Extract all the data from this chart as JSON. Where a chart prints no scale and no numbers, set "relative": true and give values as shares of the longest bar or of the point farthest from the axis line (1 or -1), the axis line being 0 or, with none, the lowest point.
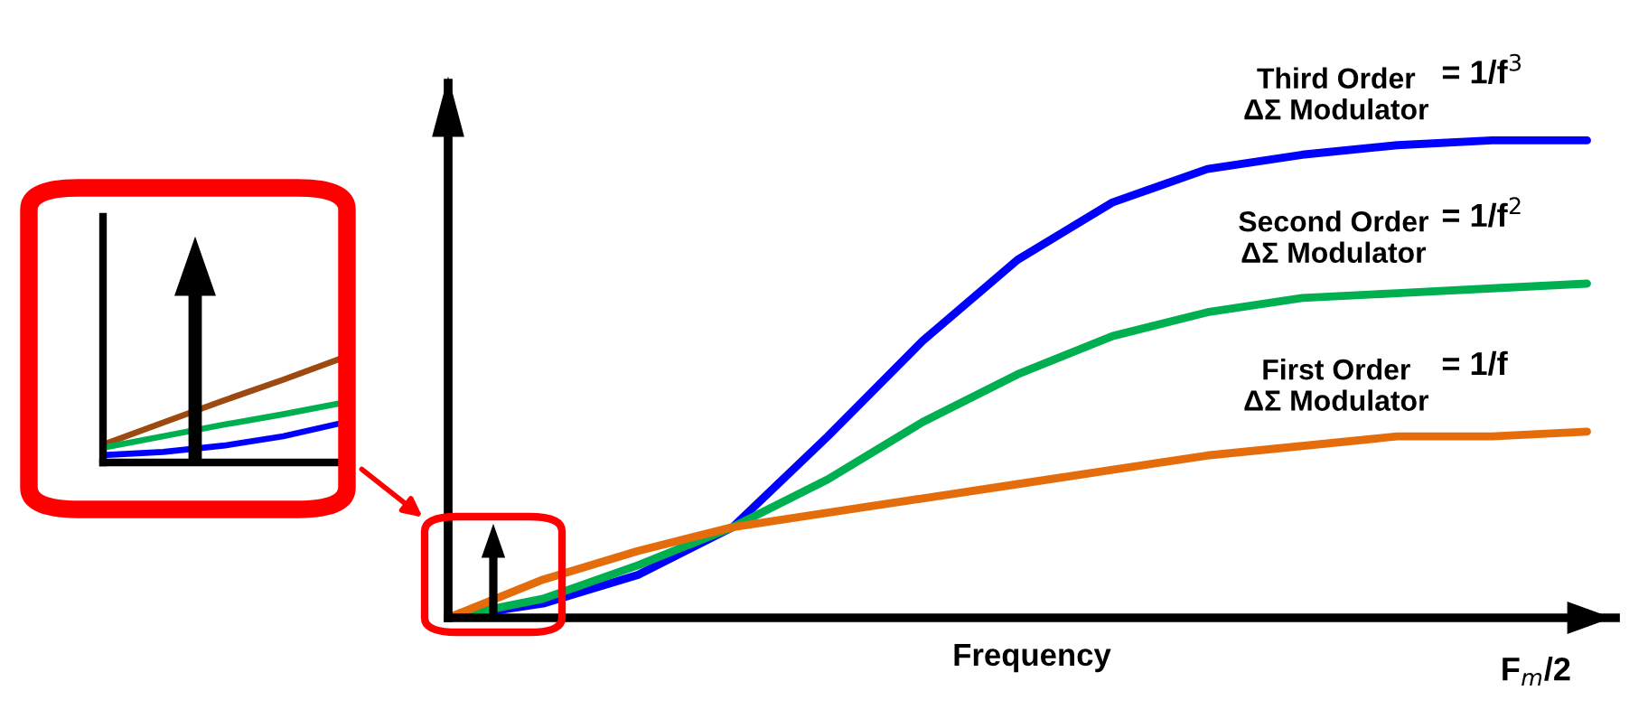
{
  "chart_data": [
    {
      "type": "line",
      "relative": true,
      "tick_labels": false,
      "legend": false,
      "grid": false,
      "xlabel": "Frequency",
      "categories": [
        null,
        null,
        null,
        null,
        null,
        null,
        null,
        null,
        null,
        null,
        null,
        null,
        null
      ],
      "series": [
        {
          "name": "Third Order\nΔΣ Modulator",
          "color": "#0000ff",
          "values": [
            0,
            0.03,
            0.09,
            0.19,
            0.38,
            0.58,
            0.75,
            0.87,
            0.94,
            0.97,
            0.99,
            1.0,
            1.0
          ]
        },
        {
          "name": "Second Order\nΔΣ Modulator",
          "color": "#00b050",
          "values": [
            0,
            0.04,
            0.11,
            0.19,
            0.29,
            0.41,
            0.51,
            0.59,
            0.64,
            0.67,
            0.68,
            0.69,
            0.7
          ]
        },
        {
          "name": "First Order\nΔΣ Modulator",
          "color": "#e46c0a",
          "values": [
            0,
            0.08,
            0.14,
            0.19,
            0.22,
            0.25,
            0.28,
            0.31,
            0.34,
            0.36,
            0.38,
            0.38,
            0.39
          ]
        }
      ],
      "annotations": [
        "= 1/f$^{3}$",
        "= 1/f$^{2}$",
        "= 1/f",
        "F$_{m}$/2"
      ]
    },
    {
      "type": "line",
      "relative": true,
      "tick_labels": false,
      "legend": false,
      "grid": false,
      "categories": [
        null,
        null,
        null,
        null,
        null
      ],
      "series": [
        {
          "color": "#9c4a0f",
          "values": [
            0.17,
            0.38,
            0.59,
            0.79,
            1.0
          ]
        },
        {
          "color": "#00b050",
          "values": [
            0.14,
            0.25,
            0.36,
            0.46,
            0.57
          ]
        },
        {
          "color": "#0000ff",
          "values": [
            0.07,
            0.1,
            0.16,
            0.25,
            0.38
          ]
        }
      ]
    }
  ]
}
